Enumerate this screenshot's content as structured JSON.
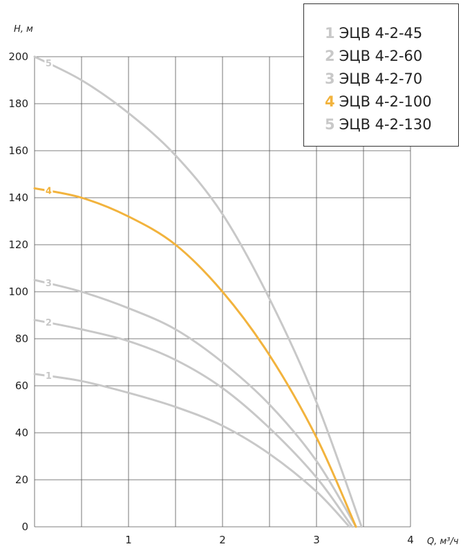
{
  "chart_data": {
    "type": "line",
    "xlabel": "Q, м³/ч",
    "ylabel": "H, м",
    "xlim": [
      0,
      4
    ],
    "ylim": [
      0,
      200
    ],
    "x_ticks": [
      "1",
      "2",
      "3",
      "4"
    ],
    "y_ticks": [
      "0",
      "20",
      "40",
      "60",
      "80",
      "100",
      "120",
      "140",
      "160",
      "180",
      "200"
    ],
    "grid": true,
    "legend_position": "top-right",
    "series": [
      {
        "name": "ЭЦВ 4-2-45",
        "number": "1",
        "color": "#c8c8c8",
        "x": [
          0,
          0.5,
          1.0,
          1.5,
          2.0,
          2.5,
          3.0,
          3.35
        ],
        "y": [
          65,
          62,
          57,
          51,
          43,
          31,
          15,
          0
        ]
      },
      {
        "name": "ЭЦВ 4-2-60",
        "number": "2",
        "color": "#c8c8c8",
        "x": [
          0,
          0.5,
          1.0,
          1.5,
          2.0,
          2.5,
          3.0,
          3.38
        ],
        "y": [
          88,
          84,
          79,
          71,
          59,
          42,
          21,
          0
        ]
      },
      {
        "name": "ЭЦВ 4-2-70",
        "number": "3",
        "color": "#c8c8c8",
        "x": [
          0,
          0.5,
          1.0,
          1.5,
          2.0,
          2.5,
          3.0,
          3.42
        ],
        "y": [
          105,
          100,
          93,
          84,
          70,
          52,
          28,
          0
        ]
      },
      {
        "name": "ЭЦВ 4-2-100",
        "number": "4",
        "color": "#f2b33d",
        "x": [
          0,
          0.5,
          1.0,
          1.5,
          2.0,
          2.5,
          3.0,
          3.42
        ],
        "y": [
          144,
          140,
          132,
          120,
          100,
          73,
          38,
          0
        ]
      },
      {
        "name": "ЭЦВ 4-2-130",
        "number": "5",
        "color": "#c8c8c8",
        "x": [
          0,
          0.5,
          1.0,
          1.5,
          2.0,
          2.5,
          3.0,
          3.48
        ],
        "y": [
          200,
          190,
          176,
          158,
          133,
          97,
          53,
          0
        ]
      }
    ]
  }
}
